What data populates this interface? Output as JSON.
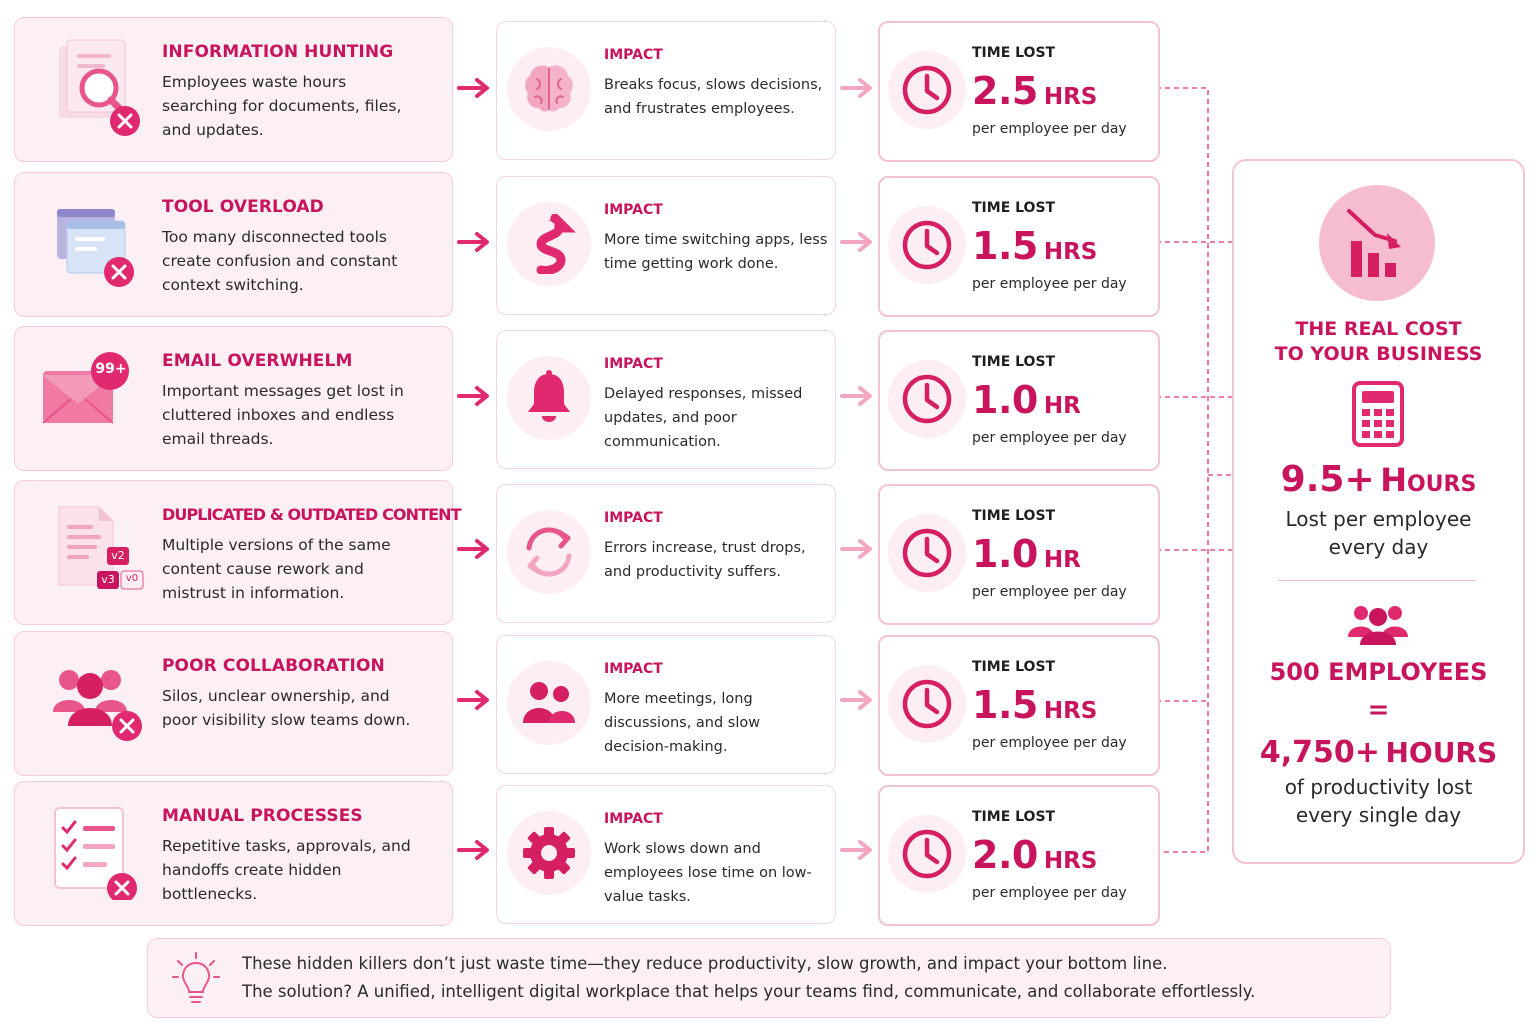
{
  "problems": [
    {
      "title": "INFORMATION HUNTING",
      "text": "Employees waste hours searching for documents, files, and updates.",
      "icon": "document-search-icon"
    },
    {
      "title": "TOOL OVERLOAD",
      "text": "Too many disconnected tools create confusion and constant context switching.",
      "icon": "stacked-windows-icon"
    },
    {
      "title": "EMAIL OVERWHELM",
      "text": "Important messages get lost in cluttered inboxes and endless email threads.",
      "icon": "envelope-icon",
      "badge": "99+"
    },
    {
      "title": "DUPLICATED & OUTDATED CONTENT",
      "text": "Multiple versions of the same content cause rework and mistrust in information.",
      "icon": "document-versions-icon",
      "version_tags": [
        "v2",
        "v3",
        "v0"
      ]
    },
    {
      "title": "POOR COLLABORATION",
      "text": "Silos, unclear ownership, and poor visibility slow teams down.",
      "icon": "people-group-icon"
    },
    {
      "title": "MANUAL PROCESSES",
      "text": "Repetitive tasks, approvals, and handoffs create hidden bottlenecks.",
      "icon": "checklist-icon"
    }
  ],
  "impacts": [
    {
      "label": "IMPACT",
      "text": "Breaks focus, slows decisions, and frustrates employees.",
      "icon": "brain-icon"
    },
    {
      "label": "IMPACT",
      "text": "More time switching apps, less time getting work done.",
      "icon": "winding-arrow-icon"
    },
    {
      "label": "IMPACT",
      "text": "Delayed responses, missed updates, and poor communication.",
      "icon": "bell-icon"
    },
    {
      "label": "IMPACT",
      "text": "Errors increase, trust drops, and productivity suffers.",
      "icon": "refresh-arrows-icon"
    },
    {
      "label": "IMPACT",
      "text": "More meetings, long discussions, and slow decision-making.",
      "icon": "two-people-icon"
    },
    {
      "label": "IMPACT",
      "text": "Work slows down and employees lose time on low-value tasks.",
      "icon": "gear-icon"
    }
  ],
  "time_lost": [
    {
      "label": "TIME LOST",
      "value": "2.5",
      "unit": "HRS",
      "per": "per employee per day"
    },
    {
      "label": "TIME LOST",
      "value": "1.5",
      "unit": "HRS",
      "per": "per employee per day"
    },
    {
      "label": "TIME LOST",
      "value": "1.0",
      "unit": "HR",
      "per": "per employee per day"
    },
    {
      "label": "TIME LOST",
      "value": "1.0",
      "unit": "HR",
      "per": "per employee per day"
    },
    {
      "label": "TIME LOST",
      "value": "1.5",
      "unit": "HRS",
      "per": "per employee per day"
    },
    {
      "label": "TIME LOST",
      "value": "2.0",
      "unit": "HRS",
      "per": "per employee per day"
    }
  ],
  "summary": {
    "title_line1": "THE REAL COST",
    "title_line2": "TO YOUR BUSINESS",
    "hours_value": "9.5+",
    "hours_unit": "Hours",
    "hours_caption_line1": "Lost per employee",
    "hours_caption_line2": "every day",
    "employees": "500 EMPLOYEES",
    "equals": "=",
    "total_value": "4,750+",
    "total_unit": "HOURS",
    "total_caption_line1": "of productivity lost",
    "total_caption_line2": "every single day"
  },
  "footer": {
    "line1": "These hidden killers don’t just waste time—they reduce productivity, slow growth, and impact your bottom line.",
    "line2": "The solution? A unified, intelligent digital workplace that helps your teams find, communicate, and collaborate effortlessly."
  },
  "colors": {
    "accent": "#c8145c",
    "accent_light": "#f3a6c2",
    "card_bg": "#fdf0f4",
    "border": "#f4c3d3"
  }
}
